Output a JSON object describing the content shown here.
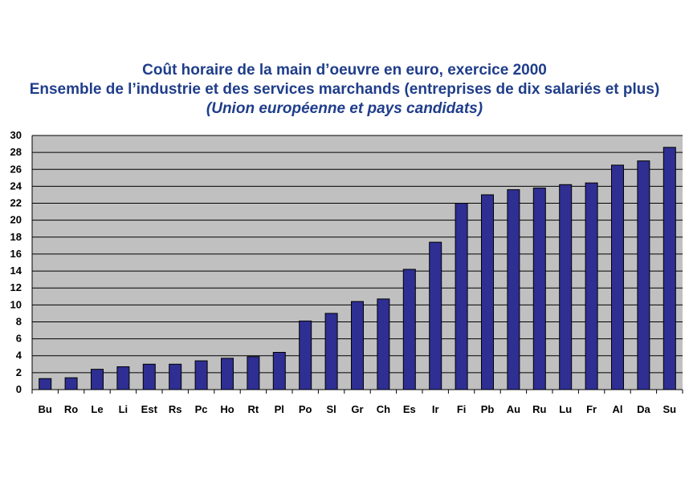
{
  "chart_data": {
    "type": "bar",
    "title": "Coût horaire de la main d’oeuvre en euro, exercice 2000",
    "subtitle": "Ensemble de l’industrie et des services marchands (entreprises de dix salariés et plus)",
    "subtitle2": "(Union européenne et pays candidats)",
    "categories": [
      "Bu",
      "Ro",
      "Le",
      "Li",
      "Est",
      "Rs",
      "Pc",
      "Ho",
      "Rt",
      "Pl",
      "Po",
      "Sl",
      "Gr",
      "Ch",
      "Es",
      "Ir",
      "Fi",
      "Pb",
      "Au",
      "Ru",
      "Lu",
      "Fr",
      "Al",
      "Da",
      "Su"
    ],
    "values": [
      1.3,
      1.4,
      2.4,
      2.7,
      3.0,
      3.0,
      3.4,
      3.7,
      3.9,
      4.4,
      8.1,
      9.0,
      10.4,
      10.7,
      14.2,
      17.4,
      22.0,
      23.0,
      23.6,
      23.8,
      24.2,
      24.4,
      26.5,
      27.0,
      28.6
    ],
    "ylim": [
      0,
      30
    ],
    "yticks": [
      "0",
      "2",
      "4",
      "6",
      "8",
      "10",
      "12",
      "14",
      "16",
      "18",
      "20",
      "22",
      "24",
      "26",
      "28",
      "30"
    ],
    "grid": true,
    "colors": {
      "bar": "#2e2e93",
      "bar_edge": "#000000",
      "plot_bg": "#c0c0c0",
      "title": "#1f3d8a"
    }
  }
}
